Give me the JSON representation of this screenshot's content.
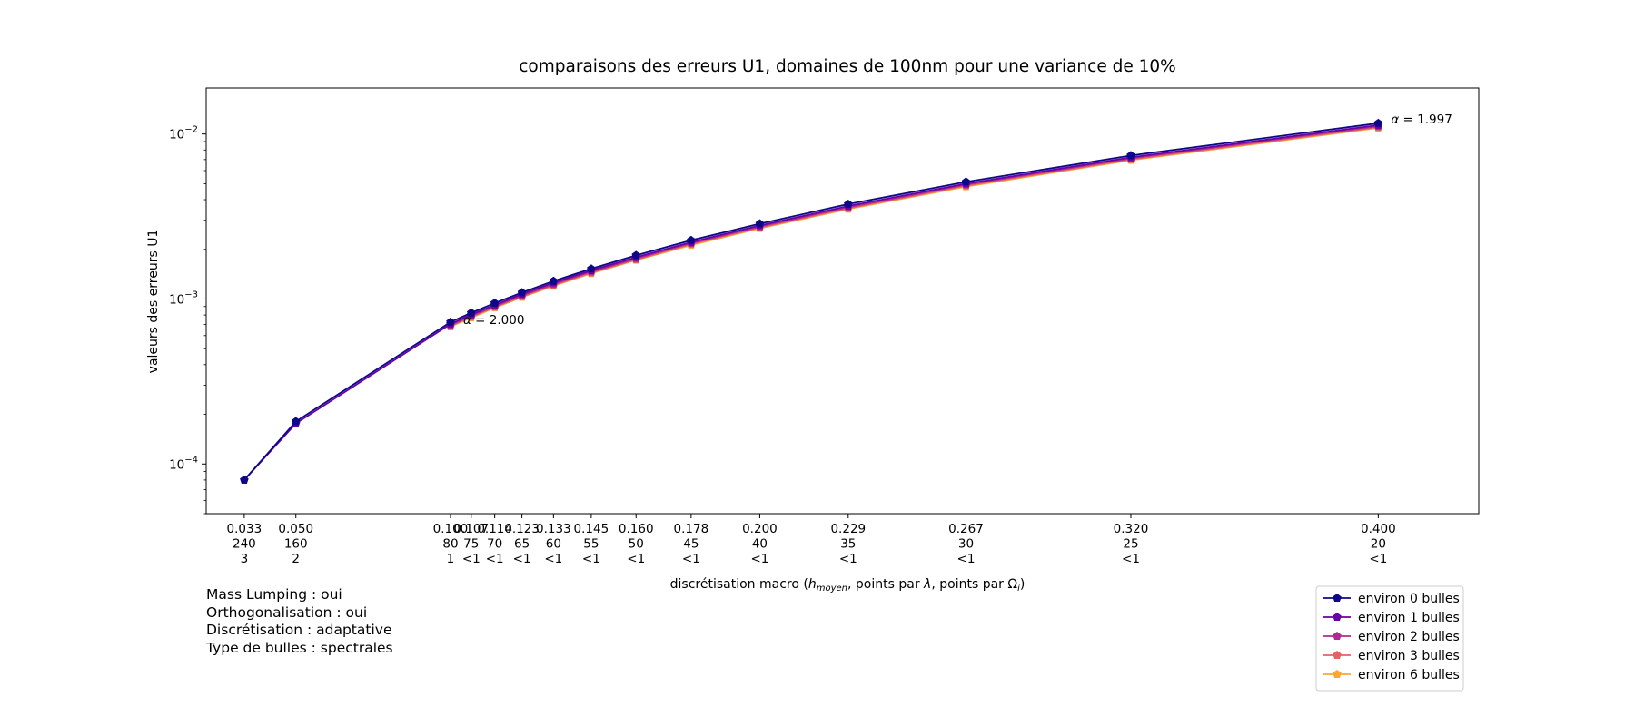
{
  "chart_data": {
    "type": "line",
    "title": "comparaisons des erreurs U1, domaines de 100nm pour une variance de 10%",
    "xlabel": "discrétisation macro (",
    "xlabel_var": "h",
    "xlabel_sub": "moyen",
    "xlabel_mid": ", points par ",
    "xlabel_lambda": "λ",
    "xlabel_mid2": ", points par ",
    "xlabel_omega": "Ω",
    "xlabel_omega_sub": "i",
    "xlabel_end": ")",
    "ylabel": "valeurs des erreurs U1",
    "yscale": "log",
    "ylim": [
      5e-05,
      0.019
    ],
    "ytick_labels": [
      {
        "value": 0.0001,
        "base": "10",
        "exp": "−4"
      },
      {
        "value": 0.001,
        "base": "10",
        "exp": "−3"
      },
      {
        "value": 0.01,
        "base": "10",
        "exp": "−2"
      }
    ],
    "x": [
      0.0333,
      0.05,
      0.1,
      0.1067,
      0.1143,
      0.1231,
      0.1333,
      0.1455,
      0.16,
      0.1778,
      0.2,
      0.2286,
      0.2667,
      0.32,
      0.4
    ],
    "xtick_labels": [
      [
        "0.033",
        "240",
        "3"
      ],
      [
        "0.050",
        "160",
        "2"
      ],
      [
        "0.100",
        "80",
        "1"
      ],
      [
        "0.107",
        "75",
        "<1"
      ],
      [
        "0.114",
        "70",
        "<1"
      ],
      [
        "0.123",
        "65",
        "<1"
      ],
      [
        "0.133",
        "60",
        "<1"
      ],
      [
        "0.145",
        "55",
        "<1"
      ],
      [
        "0.160",
        "50",
        "<1"
      ],
      [
        "0.178",
        "45",
        "<1"
      ],
      [
        "0.200",
        "40",
        "<1"
      ],
      [
        "0.229",
        "35",
        "<1"
      ],
      [
        "0.267",
        "30",
        "<1"
      ],
      [
        "0.320",
        "25",
        "<1"
      ],
      [
        "0.400",
        "20",
        "<1"
      ]
    ],
    "series": [
      {
        "name": "environ 0 bulles",
        "color": "#0d0887",
        "values": [
          8e-05,
          0.000181,
          0.000725,
          0.000825,
          0.000945,
          0.001095,
          0.001285,
          0.001525,
          0.00184,
          0.00227,
          0.00286,
          0.00376,
          0.00513,
          0.00741,
          0.01162
        ]
      },
      {
        "name": "environ 1 bulles",
        "color": "#6a00a8",
        "values": [
          8e-05,
          0.000176,
          0.000705,
          0.000805,
          0.00092,
          0.00107,
          0.001255,
          0.00149,
          0.00179,
          0.00221,
          0.00279,
          0.00366,
          0.005,
          0.00722,
          0.01132
        ]
      },
      {
        "name": "environ 2 bulles",
        "color": "#b12a90",
        "values": [
          null,
          null,
          0.000695,
          0.00079,
          0.000905,
          0.00105,
          0.00123,
          0.001465,
          0.00176,
          0.00218,
          0.00275,
          0.0036,
          0.00493,
          0.00712,
          0.01115
        ]
      },
      {
        "name": "environ 3 bulles",
        "color": "#e16462",
        "values": [
          null,
          null,
          0.000685,
          0.00078,
          0.000895,
          0.001035,
          0.001215,
          0.001445,
          0.001735,
          0.00215,
          0.00271,
          0.00355,
          0.00486,
          0.00702,
          0.011
        ]
      },
      {
        "name": "environ 6 bulles",
        "color": "#fca636",
        "values": [
          null,
          null,
          0.00068,
          0.00077,
          0.000885,
          0.001025,
          0.0012,
          0.00143,
          0.00172,
          0.00212,
          0.00268,
          0.00351,
          0.0048,
          0.00694,
          0.01088
        ]
      }
    ],
    "annotations": [
      {
        "text": "= 2.000",
        "symbol": "α",
        "color": "#0d0887",
        "x": 0.1,
        "y": 0.000725
      },
      {
        "text": "= 1.997",
        "symbol": "α",
        "color": "#0d0887",
        "x": 0.4,
        "y": 0.01162
      }
    ],
    "legend_position": "lower-right",
    "grid": false
  },
  "notes": {
    "mass_lumping": "Mass Lumping : oui",
    "orthogonalisation": "Orthogonalisation : oui",
    "discretisation": "Discrétisation : adaptative",
    "bubble_type": "Type de bulles : spectrales"
  }
}
